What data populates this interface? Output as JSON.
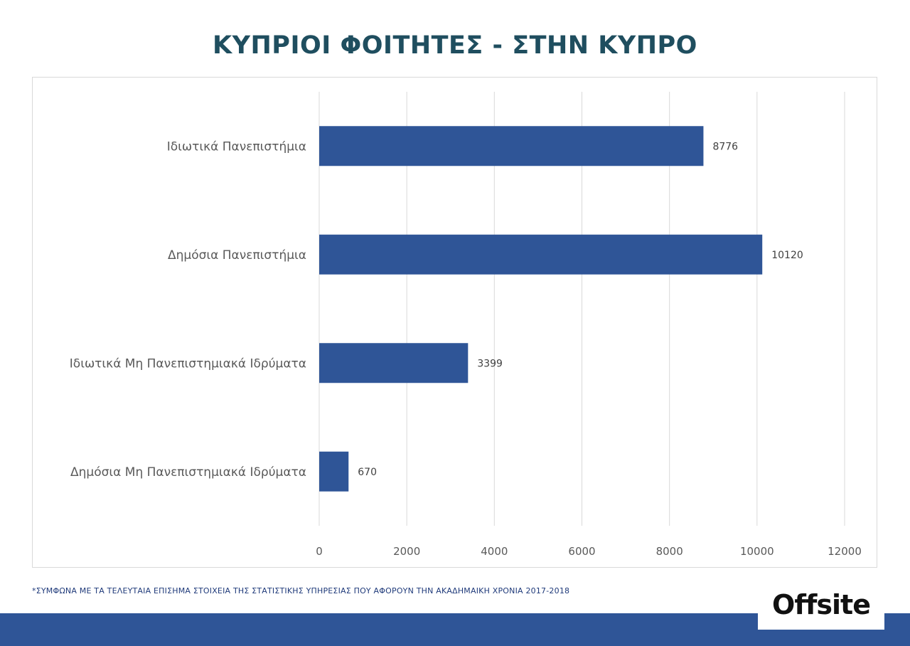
{
  "title": "ΚΥΠΡΙΟΙ ΦΟΙΤΗΤΕΣ - ΣΤΗΝ ΚΥΠΡΟ",
  "footnote": "*ΣΥΜΦΩΝΑ ΜΕ ΤΑ ΤΕΛΕΥΤΑΙΑ ΕΠΙΣΗΜΑ ΣΤΟΙΧΕΙΑ ΤΗΣ ΣΤΑΤΙΣΤΙΚΗΣ ΥΠΗΡΕΣΙΑΣ ΠΟΥ ΑΦΟΡΟΥΝ ΤΗΝ ΑΚΑΔΗΜΑΙΚΗ ΧΡΟΝΙΑ 2017-2018",
  "logo": "Offsite",
  "colors": {
    "bar": "#2f5597",
    "title": "#1f4e5f",
    "footer": "#2f5597"
  },
  "chart_data": {
    "type": "bar",
    "orientation": "horizontal",
    "categories": [
      "Ιδιωτικά Πανεπιστήμια",
      "Δημόσια Πανεπιστήμια",
      "Ιδιωτικά Μη Πανεπιστημιακά Ιδρύματα",
      "Δημόσια Μη Πανεπιστημιακά Ιδρύματα"
    ],
    "values": [
      8776,
      10120,
      3399,
      670
    ],
    "xlim": [
      0,
      12000
    ],
    "xticks": [
      0,
      2000,
      4000,
      6000,
      8000,
      10000,
      12000
    ],
    "grid": true,
    "data_labels": true
  }
}
